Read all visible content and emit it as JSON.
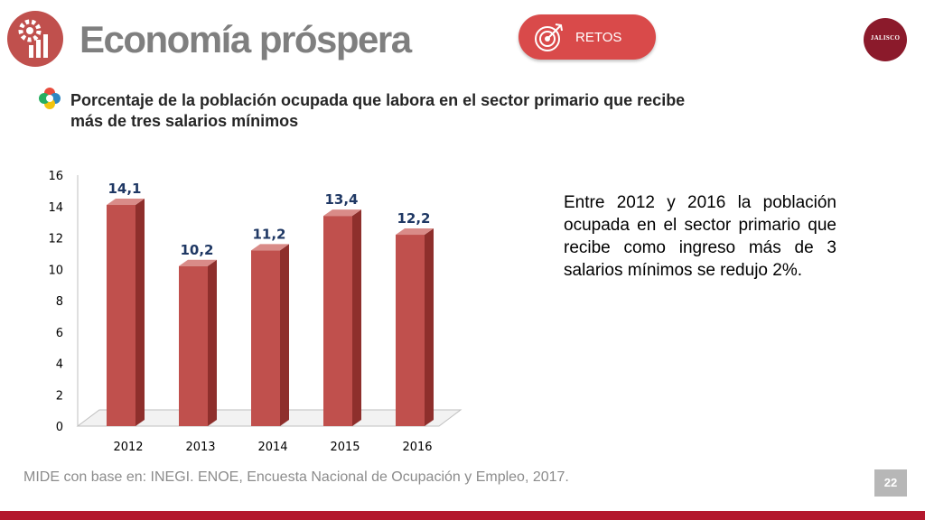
{
  "header": {
    "title": "Economía próspera",
    "retos_label": "RETOS",
    "seal_text": "JALISCO"
  },
  "indicator": {
    "title": "Porcentaje de la población ocupada que labora en el sector primario que recibe más de tres salarios mínimos"
  },
  "summary": "Entre 2012 y 2016 la población ocupada en el sector primario que recibe como ingreso más de 3 salarios mínimos se redujo  2%.",
  "footer": {
    "source": "MIDE con base en: INEGI. ENOE, Encuesta Nacional de Ocupación y Empleo, 2017.",
    "page_number": "22"
  },
  "colors": {
    "bar": "#c0504d",
    "label": "#1f3864",
    "accent": "#d94a4a",
    "bottom_bar": "#b3182d"
  },
  "chart_data": {
    "type": "bar",
    "categories": [
      "2012",
      "2013",
      "2014",
      "2015",
      "2016"
    ],
    "values": [
      14.1,
      10.2,
      11.2,
      13.4,
      12.2
    ],
    "value_labels": [
      "14,1",
      "10,2",
      "11,2",
      "13,4",
      "12,2"
    ],
    "yticks": [
      "0",
      "2",
      "4",
      "6",
      "8",
      "10",
      "12",
      "14",
      "16"
    ],
    "ylim": [
      0,
      16
    ],
    "title": "",
    "xlabel": "",
    "ylabel": "",
    "grid": false,
    "style": "3d"
  }
}
